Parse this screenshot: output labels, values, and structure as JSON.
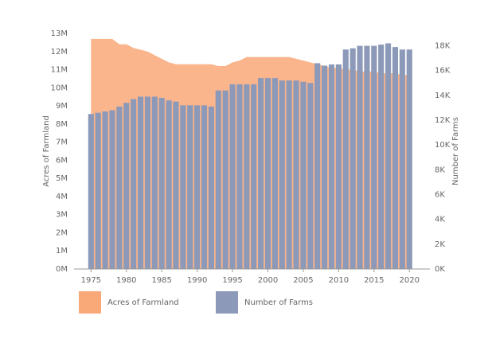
{
  "chart_data": {
    "type": "combo",
    "x": [
      1975,
      1976,
      1977,
      1978,
      1979,
      1980,
      1981,
      1982,
      1983,
      1984,
      1985,
      1986,
      1987,
      1988,
      1989,
      1990,
      1991,
      1992,
      1993,
      1994,
      1995,
      1996,
      1997,
      1998,
      1999,
      2000,
      2001,
      2002,
      2003,
      2004,
      2005,
      2006,
      2007,
      2008,
      2009,
      2010,
      2011,
      2012,
      2013,
      2014,
      2015,
      2016,
      2017,
      2018,
      2019,
      2020
    ],
    "xlim": [
      1972.6,
      2022.9
    ],
    "xticks": [
      1975,
      1980,
      1985,
      1990,
      1995,
      2000,
      2005,
      2010,
      2015,
      2020
    ],
    "y_label": "Acres of Farmland",
    "y2_label": "Number of Farms",
    "ylim": [
      0,
      13000000
    ],
    "yticks": [
      {
        "value": 0,
        "label": "0M"
      },
      {
        "value": 1000000,
        "label": "1M"
      },
      {
        "value": 2000000,
        "label": "2M"
      },
      {
        "value": 3000000,
        "label": "3M"
      },
      {
        "value": 4000000,
        "label": "4M"
      },
      {
        "value": 5000000,
        "label": "5M"
      },
      {
        "value": 6000000,
        "label": "6M"
      },
      {
        "value": 7000000,
        "label": "7M"
      },
      {
        "value": 8000000,
        "label": "8M"
      },
      {
        "value": 9000000,
        "label": "9M"
      },
      {
        "value": 10000000,
        "label": "10M"
      },
      {
        "value": 11000000,
        "label": "11M"
      },
      {
        "value": 12000000,
        "label": "12M"
      },
      {
        "value": 13000000,
        "label": "13M"
      }
    ],
    "y2lim": [
      0,
      19000
    ],
    "y2ticks": [
      {
        "value": 0,
        "label": "0K"
      },
      {
        "value": 2000,
        "label": "2K"
      },
      {
        "value": 4000,
        "label": "4K"
      },
      {
        "value": 6000,
        "label": "6K"
      },
      {
        "value": 8000,
        "label": "8K"
      },
      {
        "value": 10000,
        "label": "10K"
      },
      {
        "value": 12000,
        "label": "12K"
      },
      {
        "value": 14000,
        "label": "14K"
      },
      {
        "value": 16000,
        "label": "16K"
      },
      {
        "value": 18000,
        "label": "18K"
      }
    ],
    "series": [
      {
        "name": "Acres of Farmland",
        "type": "area",
        "color": "#f9a878",
        "values": [
          12700000,
          12700000,
          12700000,
          12700000,
          12400000,
          12400000,
          12200000,
          12100000,
          12000000,
          11800000,
          11600000,
          11400000,
          11300000,
          11300000,
          11300000,
          11300000,
          11300000,
          11300000,
          11200000,
          11200000,
          11400000,
          11500000,
          11700000,
          11700000,
          11700000,
          11700000,
          11700000,
          11700000,
          11700000,
          11600000,
          11500000,
          11400000,
          11300000,
          11200000,
          11100000,
          11100000,
          11000000,
          11000000,
          10900000,
          10900000,
          10900000,
          10800000,
          10800000,
          10800000,
          10700000,
          10700000
        ]
      },
      {
        "name": "Number of Farms",
        "type": "bar",
        "axis": "y2",
        "color": "#8c99b8",
        "values": [
          12500,
          12600,
          12700,
          12800,
          13100,
          13400,
          13700,
          13900,
          13900,
          13900,
          13800,
          13600,
          13500,
          13200,
          13200,
          13200,
          13200,
          13100,
          14400,
          14400,
          14900,
          14900,
          14900,
          14900,
          15400,
          15400,
          15400,
          15200,
          15200,
          15200,
          15100,
          15000,
          16600,
          16400,
          16500,
          16500,
          17700,
          17800,
          18000,
          18000,
          18000,
          18100,
          18200,
          17900,
          17700,
          17700
        ]
      }
    ]
  }
}
